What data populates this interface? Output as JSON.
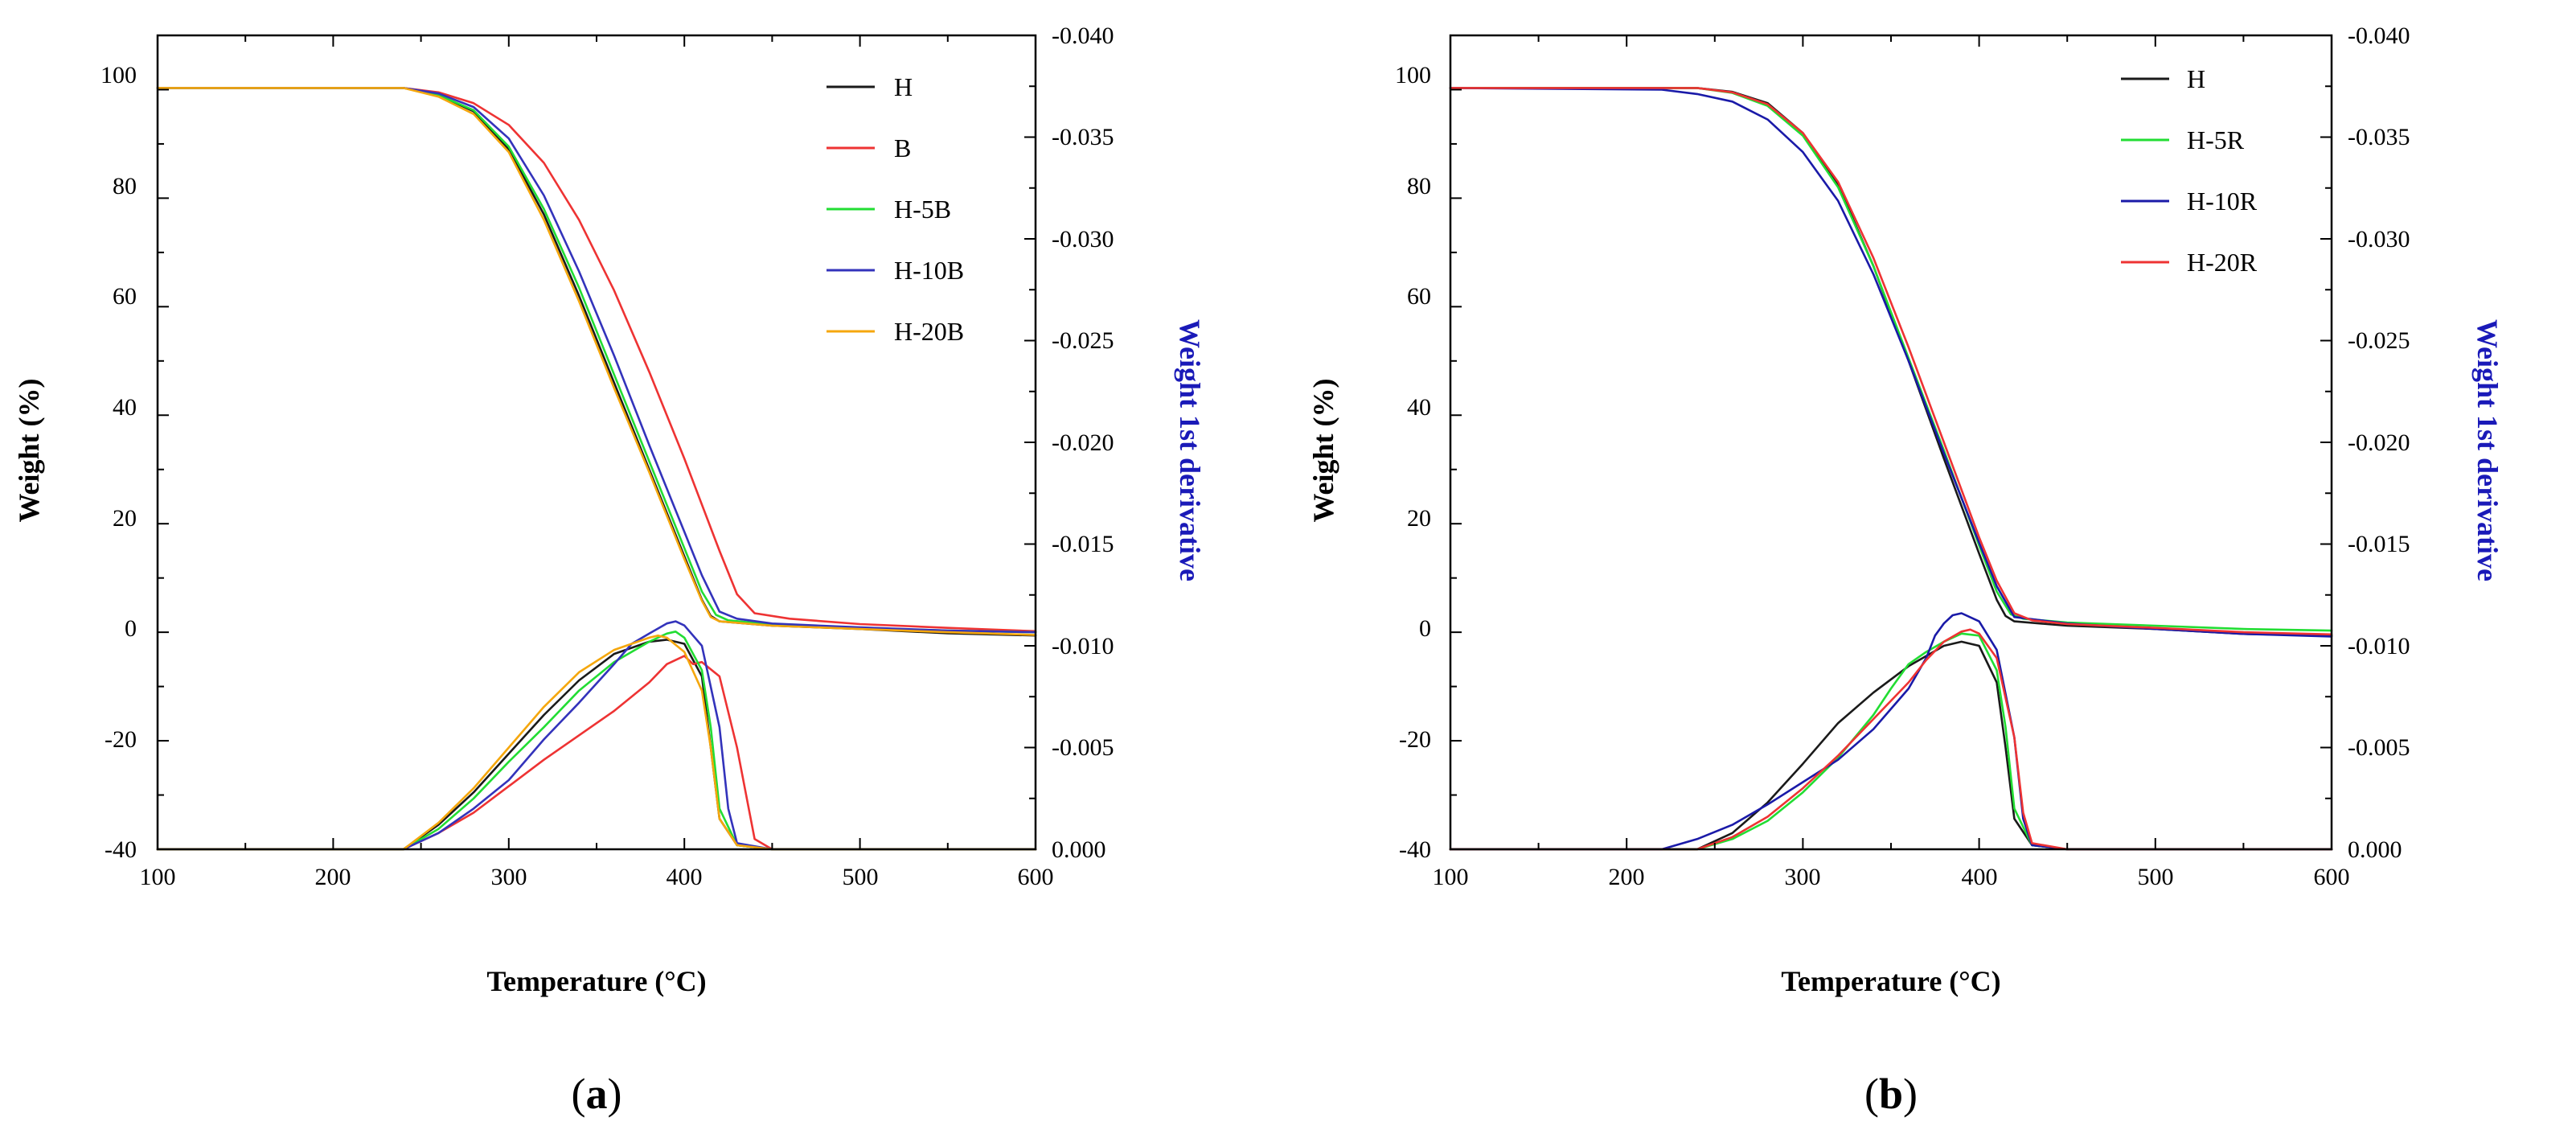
{
  "figure": {
    "colors": {
      "H": "#1a1a1a",
      "B": "#ee3333",
      "H-5B": "#22dd33",
      "H-10B": "#3333bb",
      "H-20B": "#f5a70d",
      "H-5R": "#22dd33",
      "H-10R": "#1a1aa8",
      "H-20R": "#ee3333",
      "right_axis": "#1a1ab8"
    }
  },
  "chart_data": [
    {
      "panel_label": {
        "open": "(",
        "letter": "a",
        "close": ")"
      },
      "type": "line",
      "title": "",
      "xlabel": "Temperature (°C)",
      "ylabel": "Weight (%)",
      "y2label": "Weight 1st derivative",
      "xlim": [
        100,
        600
      ],
      "ylim": [
        -40,
        110
      ],
      "y2lim": [
        0.0,
        -0.04
      ],
      "x_ticks": [
        "100",
        "200",
        "300",
        "400",
        "500",
        "600"
      ],
      "y_ticks": [
        "-40",
        "-20",
        "0",
        "20",
        "40",
        "60",
        "80",
        "100"
      ],
      "y2_ticks": [
        "0.000",
        "-0.005",
        "-0.010",
        "-0.015",
        "-0.020",
        "-0.025",
        "-0.030",
        "-0.035",
        "-0.040"
      ],
      "legend": [
        "H",
        "B",
        "H-5B",
        "H-10B",
        "H-20B"
      ],
      "legend_position": "top-right",
      "series": [
        {
          "name": "H",
          "weight": {
            "x": [
              100,
              240,
              260,
              280,
              300,
              320,
              340,
              360,
              380,
              400,
              410,
              415,
              420,
              450,
              500,
              550,
              600
            ],
            "y": [
              100.3,
              100.3,
              99.0,
              96.0,
              89.0,
              77.0,
              62.0,
              46.0,
              30.0,
              14.0,
              6.0,
              3.0,
              2.0,
              1.2,
              0.6,
              -0.2,
              -0.6
            ]
          },
          "derivative": {
            "x": [
              100,
              240,
              260,
              280,
              300,
              320,
              340,
              360,
              380,
              390,
              400,
              410,
              415,
              420,
              430,
              450,
              600
            ],
            "y": [
              0.0,
              0.0,
              -0.0012,
              -0.0028,
              -0.0047,
              -0.0066,
              -0.0083,
              -0.0096,
              -0.0102,
              -0.0103,
              -0.0101,
              -0.0085,
              -0.005,
              -0.0015,
              -0.0002,
              0.0,
              0.0
            ]
          }
        },
        {
          "name": "B",
          "weight": {
            "x": [
              100,
              240,
              260,
              280,
              300,
              320,
              340,
              360,
              380,
              400,
              420,
              430,
              440,
              460,
              500,
              550,
              600
            ],
            "y": [
              100.3,
              100.3,
              99.5,
              97.5,
              93.5,
              86.5,
              76.0,
              63.0,
              48.0,
              32.0,
              15.0,
              7.0,
              3.5,
              2.5,
              1.5,
              0.8,
              0.2
            ]
          },
          "derivative": {
            "x": [
              100,
              240,
              260,
              280,
              300,
              320,
              340,
              360,
              380,
              390,
              400,
              405,
              410,
              420,
              430,
              440,
              450,
              600
            ],
            "y": [
              0.0,
              0.0,
              -0.0008,
              -0.0018,
              -0.0031,
              -0.0044,
              -0.0056,
              -0.0068,
              -0.0082,
              -0.0091,
              -0.0095,
              -0.0091,
              -0.0092,
              -0.0085,
              -0.005,
              -0.0005,
              0.0,
              0.0
            ]
          }
        },
        {
          "name": "H-5B",
          "weight": {
            "x": [
              100,
              240,
              260,
              280,
              300,
              320,
              340,
              360,
              380,
              400,
              410,
              418,
              425,
              450,
              500,
              550,
              600
            ],
            "y": [
              100.3,
              100.3,
              99.0,
              96.2,
              89.5,
              78.0,
              63.5,
              47.5,
              31.5,
              15.5,
              7.5,
              3.2,
              2.2,
              1.4,
              0.8,
              0.3,
              0.0
            ]
          },
          "derivative": {
            "x": [
              100,
              240,
              260,
              280,
              300,
              320,
              340,
              360,
              380,
              390,
              395,
              400,
              410,
              415,
              420,
              430,
              450,
              600
            ],
            "y": [
              0.0,
              0.0,
              -0.001,
              -0.0025,
              -0.0043,
              -0.006,
              -0.0078,
              -0.0092,
              -0.0102,
              -0.0106,
              -0.0107,
              -0.0104,
              -0.0088,
              -0.006,
              -0.002,
              -0.0002,
              0.0,
              0.0
            ]
          }
        },
        {
          "name": "H-10B",
          "weight": {
            "x": [
              100,
              240,
              260,
              280,
              300,
              320,
              340,
              360,
              380,
              400,
              410,
              420,
              430,
              450,
              500,
              550,
              600
            ],
            "y": [
              100.3,
              100.3,
              99.3,
              96.8,
              91.0,
              80.5,
              66.5,
              51.0,
              34.5,
              18.5,
              10.5,
              3.8,
              2.5,
              1.6,
              0.9,
              0.3,
              0.0
            ]
          },
          "derivative": {
            "x": [
              100,
              240,
              260,
              280,
              300,
              320,
              340,
              360,
              370,
              380,
              390,
              395,
              400,
              410,
              420,
              425,
              430,
              450,
              600
            ],
            "y": [
              0.0,
              0.0,
              -0.0008,
              -0.002,
              -0.0034,
              -0.0054,
              -0.0072,
              -0.0091,
              -0.0101,
              -0.0106,
              -0.0111,
              -0.0112,
              -0.011,
              -0.01,
              -0.006,
              -0.002,
              -0.0003,
              0.0,
              0.0
            ]
          }
        },
        {
          "name": "H-20B",
          "weight": {
            "x": [
              100,
              240,
              260,
              280,
              300,
              320,
              340,
              360,
              380,
              400,
              410,
              415,
              420,
              450,
              500,
              550,
              600
            ],
            "y": [
              100.3,
              100.3,
              98.7,
              95.5,
              88.5,
              76.0,
              61.0,
              45.0,
              29.5,
              13.5,
              5.8,
              2.8,
              2.0,
              1.2,
              0.6,
              0.0,
              -0.5
            ]
          },
          "derivative": {
            "x": [
              100,
              240,
              260,
              280,
              300,
              320,
              340,
              360,
              380,
              385,
              390,
              400,
              410,
              415,
              420,
              430,
              450,
              600
            ],
            "y": [
              0.0,
              0.0,
              -0.0013,
              -0.003,
              -0.005,
              -0.007,
              -0.0087,
              -0.0098,
              -0.0104,
              -0.0105,
              -0.0104,
              -0.0097,
              -0.0078,
              -0.005,
              -0.0015,
              -0.0002,
              0.0,
              0.0
            ]
          }
        }
      ]
    },
    {
      "panel_label": {
        "open": "(",
        "letter": "b",
        "close": ")"
      },
      "type": "line",
      "title": "",
      "xlabel": "Temperature (°C)",
      "ylabel": "Weight (%)",
      "y2label": "Weight 1st derivative",
      "xlim": [
        100,
        600
      ],
      "ylim": [
        -40,
        110
      ],
      "y2lim": [
        0.0,
        -0.04
      ],
      "x_ticks": [
        "100",
        "200",
        "300",
        "400",
        "500",
        "600"
      ],
      "y_ticks": [
        "-40",
        "-20",
        "0",
        "20",
        "40",
        "60",
        "80",
        "100"
      ],
      "y2_ticks": [
        "0.000",
        "-0.005",
        "-0.010",
        "-0.015",
        "-0.020",
        "-0.025",
        "-0.030",
        "-0.035",
        "-0.040"
      ],
      "legend": [
        "H",
        "H-5R",
        "H-10R",
        "H-20R"
      ],
      "legend_position": "top-right",
      "series": [
        {
          "name": "H",
          "weight": {
            "x": [
              100,
              240,
              260,
              280,
              300,
              320,
              340,
              360,
              380,
              400,
              410,
              415,
              420,
              450,
              500,
              550,
              600
            ],
            "y": [
              100.3,
              100.3,
              99.6,
              97.5,
              92.0,
              82.5,
              67.5,
              50.0,
              32.0,
              14.5,
              6.0,
              3.0,
              2.0,
              1.2,
              0.6,
              -0.3,
              -0.6
            ]
          },
          "derivative": {
            "x": [
              100,
              240,
              260,
              280,
              300,
              320,
              340,
              360,
              380,
              390,
              400,
              410,
              415,
              420,
              430,
              450,
              600
            ],
            "y": [
              0.0,
              0.0,
              -0.0008,
              -0.0023,
              -0.0042,
              -0.0062,
              -0.0077,
              -0.009,
              -0.01,
              -0.0102,
              -0.01,
              -0.0082,
              -0.005,
              -0.0015,
              -0.0002,
              0.0,
              0.0
            ]
          }
        },
        {
          "name": "H-5R",
          "weight": {
            "x": [
              100,
              240,
              260,
              280,
              300,
              320,
              340,
              360,
              380,
              400,
              410,
              418,
              425,
              450,
              500,
              550,
              600
            ],
            "y": [
              100.3,
              100.3,
              99.4,
              97.0,
              91.5,
              82.0,
              67.5,
              50.5,
              33.5,
              16.0,
              7.5,
              3.3,
              2.5,
              1.8,
              1.2,
              0.6,
              0.3
            ]
          },
          "derivative": {
            "x": [
              100,
              240,
              260,
              280,
              300,
              320,
              340,
              350,
              360,
              370,
              380,
              390,
              400,
              410,
              415,
              420,
              430,
              450,
              600
            ],
            "y": [
              0.0,
              0.0,
              -0.0005,
              -0.0014,
              -0.0028,
              -0.0045,
              -0.0066,
              -0.0079,
              -0.0091,
              -0.0097,
              -0.0102,
              -0.0106,
              -0.0105,
              -0.0088,
              -0.006,
              -0.002,
              -0.0002,
              0.0,
              0.0
            ]
          }
        },
        {
          "name": "H-10R",
          "weight": {
            "x": [
              100,
              220,
              240,
              260,
              280,
              300,
              320,
              340,
              360,
              380,
              400,
              410,
              420,
              450,
              500,
              550,
              600
            ],
            "y": [
              100.3,
              100.0,
              99.2,
              97.8,
              94.5,
              88.5,
              79.5,
              66.0,
              50.0,
              33.0,
              16.5,
              8.5,
              2.8,
              1.6,
              0.6,
              -0.3,
              -0.8
            ]
          },
          "derivative": {
            "x": [
              100,
              220,
              240,
              260,
              280,
              300,
              320,
              340,
              360,
              370,
              375,
              380,
              385,
              390,
              400,
              410,
              420,
              425,
              430,
              450,
              600
            ],
            "y": [
              0.0,
              0.0,
              -0.0005,
              -0.0012,
              -0.0022,
              -0.0033,
              -0.0044,
              -0.0059,
              -0.0079,
              -0.0094,
              -0.0105,
              -0.0111,
              -0.0115,
              -0.0116,
              -0.0112,
              -0.0098,
              -0.0055,
              -0.0015,
              -0.0002,
              0.0,
              0.0
            ]
          }
        },
        {
          "name": "H-20R",
          "weight": {
            "x": [
              100,
              240,
              260,
              280,
              300,
              320,
              340,
              360,
              380,
              400,
              410,
              420,
              430,
              450,
              500,
              550,
              600
            ],
            "y": [
              100.3,
              100.3,
              99.5,
              97.3,
              92.0,
              83.0,
              69.0,
              52.5,
              35.0,
              17.5,
              9.5,
              3.5,
              2.2,
              1.5,
              0.8,
              0.0,
              -0.4
            ]
          },
          "derivative": {
            "x": [
              100,
              240,
              260,
              280,
              300,
              320,
              340,
              360,
              370,
              380,
              390,
              395,
              400,
              410,
              420,
              425,
              430,
              450,
              600
            ],
            "y": [
              0.0,
              0.0,
              -0.0006,
              -0.0016,
              -0.003,
              -0.0046,
              -0.0064,
              -0.0082,
              -0.0093,
              -0.0102,
              -0.0107,
              -0.0108,
              -0.0106,
              -0.0094,
              -0.0055,
              -0.0018,
              -0.0003,
              0.0,
              0.0
            ]
          }
        }
      ]
    }
  ]
}
